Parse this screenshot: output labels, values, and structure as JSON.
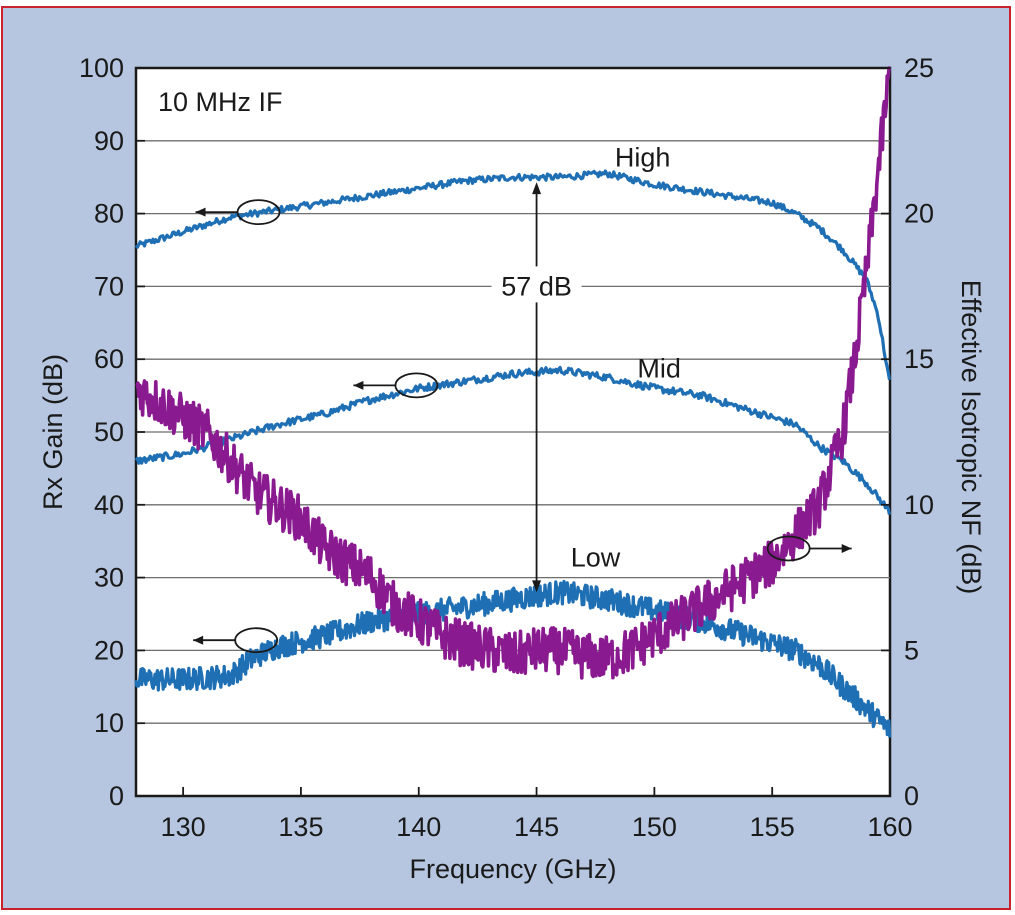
{
  "chart_data": {
    "type": "line",
    "xlabel": "Frequency (GHz)",
    "ylabel": "Rx Gain (dB)",
    "y2label": "Effective Isotropic NF (dB)",
    "xlim": [
      128,
      160
    ],
    "ylim": [
      0,
      100
    ],
    "y2lim": [
      0,
      25
    ],
    "xticks": [
      130,
      135,
      140,
      145,
      150,
      155,
      160
    ],
    "yticks": [
      0,
      10,
      20,
      30,
      40,
      50,
      60,
      70,
      80,
      90,
      100
    ],
    "y2ticks": [
      0,
      5,
      10,
      15,
      20,
      25
    ],
    "grid": "horizontal",
    "annotations": {
      "if_label": "10 MHz IF",
      "span_label": "57 dB"
    },
    "series": [
      {
        "name": "High",
        "axis": "left",
        "color": "#1f6fb5",
        "x": [
          128,
          130,
          132,
          134,
          136,
          138,
          140,
          142,
          144,
          145,
          146,
          148,
          150,
          152,
          154,
          155,
          156,
          157,
          158,
          159,
          159.5,
          160
        ],
        "y": [
          75.5,
          77.5,
          79.5,
          80.5,
          81.5,
          82.5,
          83.5,
          84.5,
          85,
          85,
          85,
          85.5,
          84,
          83,
          82,
          81.5,
          80,
          78,
          75,
          71,
          66,
          56.5
        ]
      },
      {
        "name": "Mid",
        "axis": "left",
        "color": "#1f6fb5",
        "x": [
          128,
          130,
          132,
          134,
          136,
          138,
          140,
          142,
          144,
          146,
          148,
          150,
          152,
          154,
          156,
          157,
          158,
          159,
          160
        ],
        "y": [
          46,
          47,
          49,
          51,
          52.5,
          54.5,
          56,
          57,
          58,
          58.5,
          57.5,
          56,
          55,
          53,
          51,
          48,
          46,
          43,
          39
        ]
      },
      {
        "name": "Low",
        "axis": "left",
        "color": "#1f6fb5",
        "x": [
          128,
          130,
          132,
          133,
          134,
          136,
          138,
          140,
          142,
          144,
          146,
          148,
          150,
          152,
          154,
          156,
          157,
          158,
          159,
          160
        ],
        "y": [
          16,
          16,
          16.5,
          19,
          20.5,
          22,
          24,
          25,
          26,
          27,
          28,
          27,
          25.5,
          24,
          22,
          20,
          18,
          15,
          12,
          9
        ]
      },
      {
        "name": "NF",
        "axis": "right",
        "color": "#8a1a8f",
        "x": [
          128,
          129,
          130,
          131,
          132,
          133,
          134,
          135,
          136,
          137,
          138,
          139,
          140,
          141,
          142,
          143,
          144,
          145,
          146,
          147,
          148,
          149,
          150,
          151,
          152,
          153,
          154,
          155,
          156,
          157,
          158,
          158.5,
          159,
          159.5,
          160
        ],
        "y": [
          14,
          13.5,
          13,
          12.5,
          11.5,
          10.5,
          10,
          9.5,
          8.5,
          8,
          7.5,
          6.5,
          6,
          5.5,
          5.2,
          5,
          4.8,
          5,
          5,
          4.8,
          4.7,
          5,
          5.5,
          6,
          6.5,
          7,
          7.5,
          8,
          9,
          10,
          12.5,
          15,
          18,
          21.5,
          25
        ]
      }
    ],
    "series_labels": [
      {
        "text": "High",
        "x": 149.5,
        "y": 86.5
      },
      {
        "text": "Mid",
        "x": 150.2,
        "y": 57.5
      },
      {
        "text": "Low",
        "x": 147.5,
        "y": 31.5
      }
    ]
  }
}
